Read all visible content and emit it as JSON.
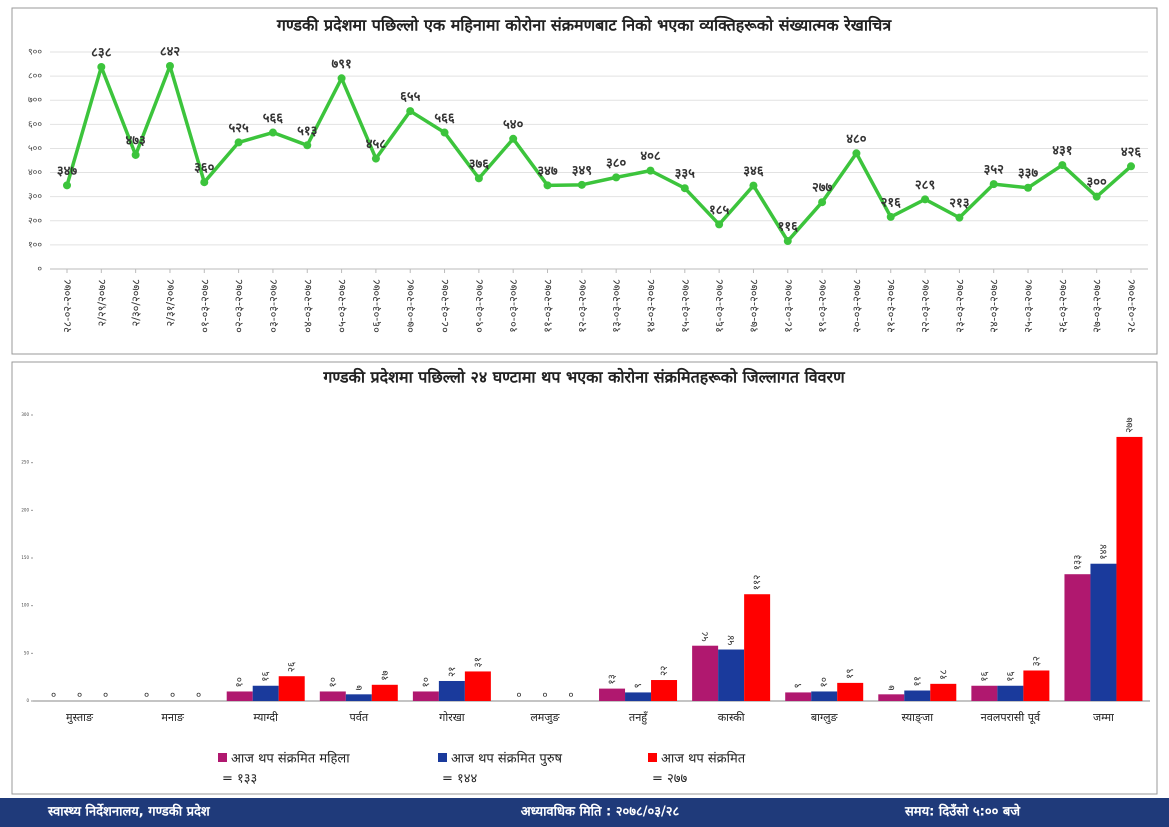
{
  "chart_data": [
    {
      "type": "line",
      "title": "गण्डकी प्रदेशमा पछिल्लो एक महिनामा कोरोना संक्रमणबाट निको भएका व्यक्तिहरूको संख्यात्मक रेखाचित्र",
      "x": [
        "२८-०२-२०७८",
        "२/२९/२०७८",
        "२/३०/२०७८",
        "२/३१/२०७८",
        "०१-०३-२०७८",
        "०२-०३-२०७८",
        "०३-०३-२०७८",
        "०४-०३-२०७८",
        "०५-०३-२०७८",
        "०६-०३-२०७८",
        "०७-०३-२०७८",
        "०८-०३-२०७८",
        "०९-०३-२०७८",
        "१०-०३-२०७८",
        "११-०३-२०७८",
        "१२-०३-२०७८",
        "१३-०३-२०७८",
        "१४-०३-२०७८",
        "१५-०३-२०७८",
        "१६-०३-२०७८",
        "१७-०३-२०७८",
        "१८-०३-२०७८",
        "१९-०३-२०७८",
        "२०-०३-२०७८",
        "२१-०३-२०७८",
        "२२-०३-२०७८",
        "२३-०३-२०७८",
        "२४-०३-२०७८",
        "२५-०३-२०७८",
        "२६-०३-२०७८",
        "२७-०३-२०७८",
        "२८-०३-२०७८"
      ],
      "values": [
        347,
        838,
        473,
        842,
        360,
        525,
        566,
        513,
        791,
        458,
        655,
        566,
        376,
        540,
        347,
        349,
        380,
        408,
        335,
        185,
        346,
        116,
        277,
        480,
        216,
        289,
        213,
        352,
        337,
        431,
        300,
        426
      ],
      "value_labels": [
        "३४७",
        "८३८",
        "४७३",
        "८४२",
        "३६०",
        "५२५",
        "५६६",
        "५१३",
        "७९१",
        "४५८",
        "६५५",
        "५६६",
        "३७६",
        "५४०",
        "३४७",
        "३४९",
        "३८०",
        "४०८",
        "३३५",
        "१८५",
        "३४६",
        "११६",
        "२७७",
        "४८०",
        "२१६",
        "२८९",
        "२१३",
        "३५२",
        "३३७",
        "४३१",
        "३००",
        "४२६"
      ],
      "color": "#3cc43c",
      "ylim": [
        0,
        900
      ],
      "yticks": [
        {
          "value": 0,
          "label": "०"
        },
        {
          "value": 100,
          "label": "१००"
        },
        {
          "value": 200,
          "label": "२००"
        },
        {
          "value": 300,
          "label": "३००"
        },
        {
          "value": 400,
          "label": "४००"
        },
        {
          "value": 500,
          "label": "५००"
        },
        {
          "value": 600,
          "label": "६००"
        },
        {
          "value": 700,
          "label": "७००"
        },
        {
          "value": 800,
          "label": "८००"
        },
        {
          "value": 900,
          "label": "९००"
        }
      ],
      "grid": true
    },
    {
      "type": "bar",
      "title": "गण्डकी प्रदेशमा पछिल्लो २४ घण्टामा थप भएका कोरोना संक्रमितहरूको जिल्लागत विवरण",
      "categories": [
        "मुस्ताङ",
        "मनाङ",
        "म्याग्दी",
        "पर्वत",
        "गोरखा",
        "लमजुङ",
        "तनहुँ",
        "कास्की",
        "बाग्लुङ",
        "स्याङ्जा",
        "नवलपरासी पूर्व",
        "जम्मा"
      ],
      "series": [
        {
          "name": "आज थप संक्रमित महिला",
          "total_label": "= १३३",
          "color": "#b0186f",
          "values": [
            0,
            0,
            10,
            10,
            10,
            0,
            13,
            58,
            9,
            7,
            16,
            133
          ],
          "value_labels": [
            "०",
            "०",
            "१०",
            "१०",
            "१०",
            "०",
            "१३",
            "५८",
            "९",
            "७",
            "१६",
            "१३३"
          ]
        },
        {
          "name": "आज थप संक्रमित पुरुष",
          "total_label": "= १४४",
          "color": "#1a3a9c",
          "values": [
            0,
            0,
            16,
            7,
            21,
            0,
            9,
            54,
            10,
            11,
            16,
            144
          ],
          "value_labels": [
            "०",
            "०",
            "१६",
            "७",
            "२१",
            "०",
            "९",
            "५४",
            "१०",
            "११",
            "१६",
            "१४४"
          ]
        },
        {
          "name": "आज थप संक्रमित",
          "total_label": "= २७७",
          "color": "#ff0000",
          "values": [
            0,
            0,
            26,
            17,
            31,
            0,
            22,
            112,
            19,
            18,
            32,
            277
          ],
          "value_labels": [
            "०",
            "०",
            "२६",
            "१७",
            "३१",
            "०",
            "२२",
            "११२",
            "१९",
            "१८",
            "३२",
            "२७७"
          ]
        }
      ],
      "ylim": [
        0,
        300
      ],
      "yticks": [
        0,
        50,
        100,
        150,
        200,
        250,
        300
      ]
    }
  ],
  "footer": {
    "left": "स्वास्थ्य निर्देशनालय, गण्डकी प्रदेश",
    "center": "अध्यावधिक मिति : २०७८/०३/२८",
    "right": "समय: दिउँसो ५:०० बजे"
  }
}
